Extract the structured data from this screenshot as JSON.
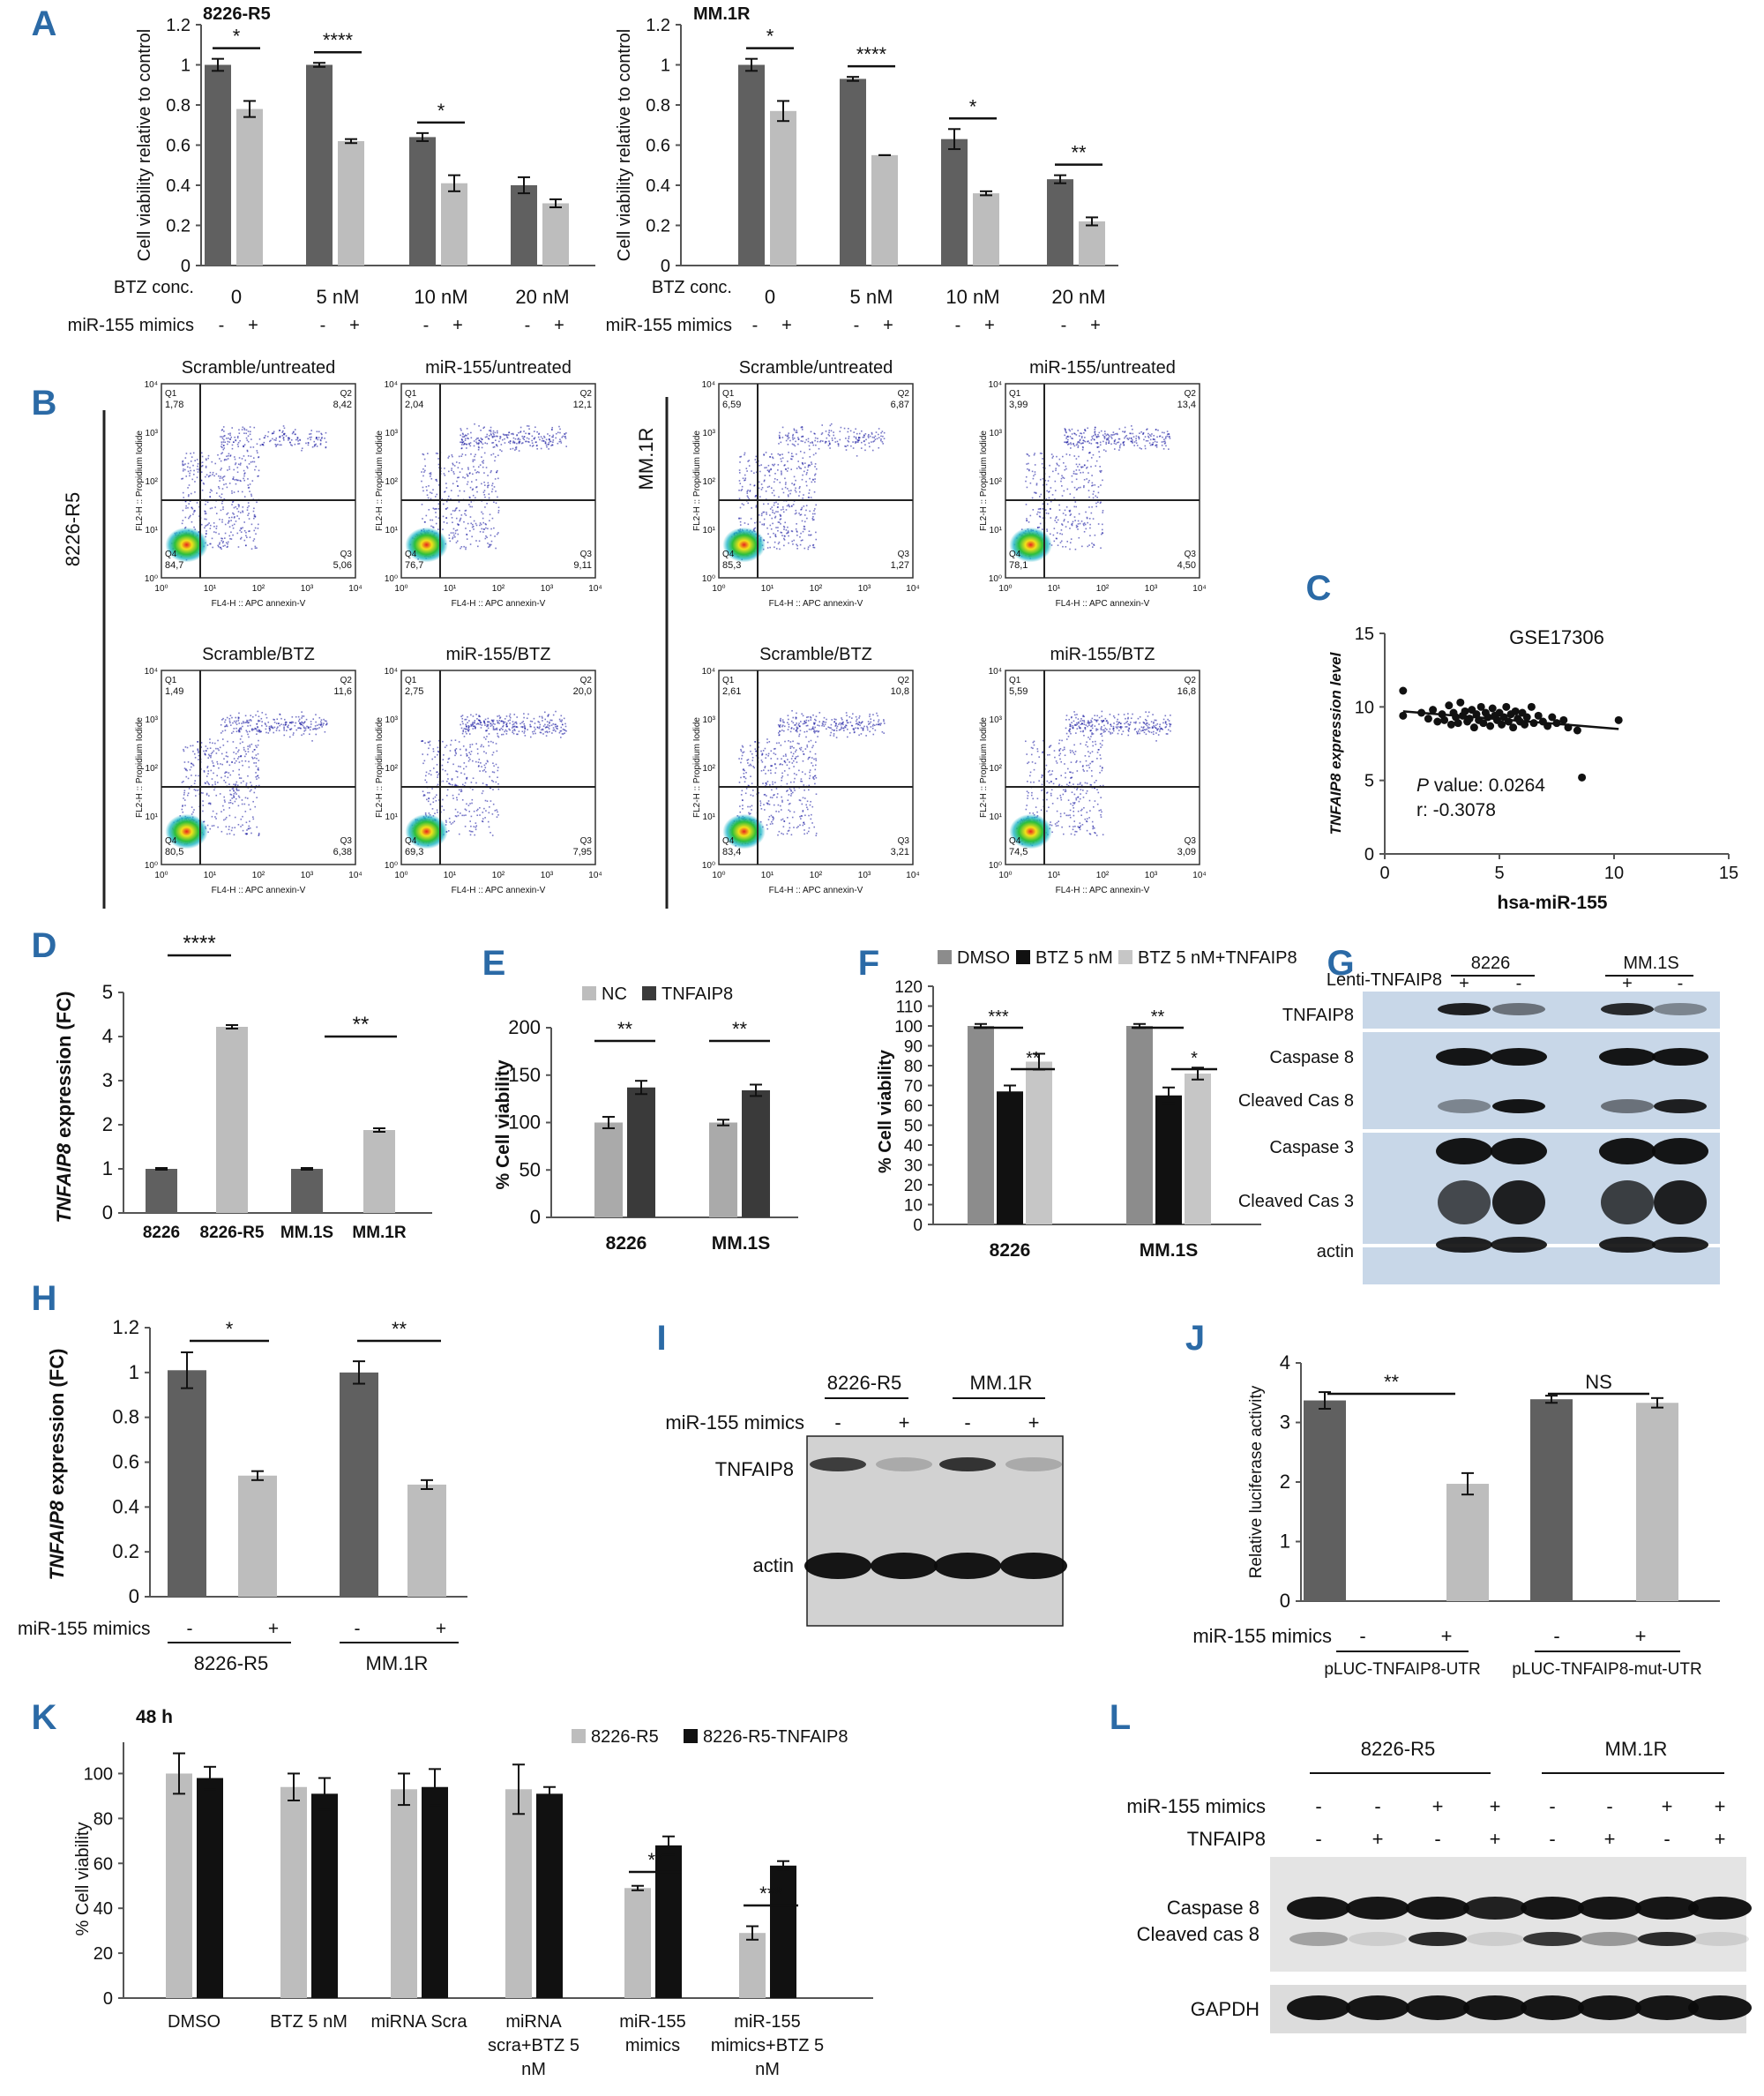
{
  "panels": [
    "A",
    "B",
    "C",
    "D",
    "E",
    "F",
    "G",
    "H",
    "I",
    "J",
    "K",
    "L"
  ],
  "colors": {
    "dark": "#606060",
    "light": "#bdbdbd",
    "black": "#111111",
    "mid": "#8c8c8c",
    "panel": "#2b6aa6",
    "dot": "#0a0a9a"
  },
  "A": {
    "ylabel": "Cell viability relative to control",
    "row1_label": "BTZ conc.",
    "row2_label": "miR-155 mimics",
    "groups": [
      "0",
      "5 nM",
      "10 nM",
      "20 nM"
    ],
    "signs": [
      "-",
      "+",
      "-",
      "+",
      "-",
      "+",
      "-",
      "+"
    ],
    "ticks": [
      "0",
      "0.2",
      "0.4",
      "0.6",
      "0.8",
      "1",
      "1.2"
    ],
    "charts": [
      {
        "title": "8226-R5",
        "values": [
          [
            1.0,
            0.78
          ],
          [
            1.0,
            0.62
          ],
          [
            0.64,
            0.41
          ],
          [
            0.4,
            0.31
          ]
        ],
        "errors": [
          [
            0.03,
            0.04
          ],
          [
            0.01,
            0.01
          ],
          [
            0.02,
            0.04
          ],
          [
            0.04,
            0.02
          ]
        ],
        "sig": [
          "*",
          "****",
          "*",
          ""
        ]
      },
      {
        "title": "MM.1R",
        "values": [
          [
            1.0,
            0.77
          ],
          [
            0.93,
            0.55
          ],
          [
            0.63,
            0.36
          ],
          [
            0.43,
            0.22
          ]
        ],
        "errors": [
          [
            0.03,
            0.05
          ],
          [
            0.01,
            0.0
          ],
          [
            0.05,
            0.01
          ],
          [
            0.02,
            0.02
          ]
        ],
        "sig": [
          "*",
          "****",
          "*",
          "**"
        ]
      }
    ]
  },
  "B": {
    "left_row_label": "8226-R5",
    "right_row_label": "MM.1R",
    "xaxis": "FL4-H :: APC annexin-V",
    "yaxis": "FL2-H :: Propidium Iodide",
    "ticks": [
      "10⁰",
      "10¹",
      "10²",
      "10³",
      "10⁴"
    ],
    "quadrant_names": [
      "Q1",
      "Q2",
      "Q3",
      "Q4"
    ],
    "plots": [
      {
        "title": "Scramble/untreated",
        "q1": "1,78",
        "q2": "8,42",
        "q3": "5,06",
        "q4": "84,7"
      },
      {
        "title": "miR-155/untreated",
        "q1": "2,04",
        "q2": "12,1",
        "q3": "9,11",
        "q4": "76,7"
      },
      {
        "title": "Scramble/BTZ",
        "q1": "1,49",
        "q2": "11,6",
        "q3": "6,38",
        "q4": "80,5"
      },
      {
        "title": "miR-155/BTZ",
        "q1": "2,75",
        "q2": "20,0",
        "q3": "7,95",
        "q4": "69,3"
      },
      {
        "title": "Scramble/untreated",
        "q1": "6,59",
        "q2": "6,87",
        "q3": "1,27",
        "q4": "85,3"
      },
      {
        "title": "miR-155/untreated",
        "q1": "3,99",
        "q2": "13,4",
        "q3": "4,50",
        "q4": "78,1"
      },
      {
        "title": "Scramble/BTZ",
        "q1": "2,61",
        "q2": "10,8",
        "q3": "3,21",
        "q4": "83,4"
      },
      {
        "title": "miR-155/BTZ",
        "q1": "5,59",
        "q2": "16,8",
        "q3": "3,09",
        "q4": "74,5"
      }
    ]
  },
  "C": {
    "title": "GSE17306",
    "ylabel": "TNFAIP8 expression level",
    "xlabel": "hsa-miR-155",
    "ticks": [
      "0",
      "5",
      "10",
      "15"
    ],
    "pvalue_label": "P",
    "pvalue_text": "value: 0.0264",
    "r_text": "r: -0.3078",
    "points": [
      [
        0.8,
        11.1
      ],
      [
        0.8,
        9.4
      ],
      [
        1.6,
        9.6
      ],
      [
        1.9,
        9.2
      ],
      [
        2.1,
        9.8
      ],
      [
        2.3,
        9.0
      ],
      [
        2.5,
        9.5
      ],
      [
        2.6,
        9.1
      ],
      [
        2.8,
        10.1
      ],
      [
        2.9,
        8.8
      ],
      [
        3.0,
        9.6
      ],
      [
        3.1,
        9.3
      ],
      [
        3.2,
        8.9
      ],
      [
        3.3,
        10.3
      ],
      [
        3.4,
        9.4
      ],
      [
        3.5,
        9.7
      ],
      [
        3.6,
        9.0
      ],
      [
        3.7,
        9.2
      ],
      [
        3.8,
        9.8
      ],
      [
        3.9,
        8.6
      ],
      [
        4.0,
        9.5
      ],
      [
        4.1,
        9.1
      ],
      [
        4.2,
        10.0
      ],
      [
        4.3,
        8.9
      ],
      [
        4.4,
        9.6
      ],
      [
        4.5,
        9.3
      ],
      [
        4.6,
        8.7
      ],
      [
        4.7,
        9.9
      ],
      [
        4.8,
        9.4
      ],
      [
        4.9,
        9.1
      ],
      [
        5.0,
        9.6
      ],
      [
        5.1,
        8.8
      ],
      [
        5.2,
        9.3
      ],
      [
        5.3,
        10.0
      ],
      [
        5.4,
        9.0
      ],
      [
        5.5,
        9.5
      ],
      [
        5.6,
        8.6
      ],
      [
        5.7,
        9.7
      ],
      [
        5.8,
        9.2
      ],
      [
        5.9,
        9.0
      ],
      [
        6.0,
        9.6
      ],
      [
        6.1,
        8.8
      ],
      [
        6.2,
        9.3
      ],
      [
        6.4,
        10.0
      ],
      [
        6.5,
        8.9
      ],
      [
        6.7,
        9.4
      ],
      [
        6.9,
        9.0
      ],
      [
        7.1,
        8.7
      ],
      [
        7.3,
        9.3
      ],
      [
        7.5,
        8.9
      ],
      [
        7.8,
        9.1
      ],
      [
        8.0,
        8.6
      ],
      [
        8.4,
        8.4
      ],
      [
        8.6,
        5.2
      ],
      [
        10.2,
        9.1
      ]
    ],
    "fit": [
      [
        0.8,
        9.7
      ],
      [
        10.2,
        8.5
      ]
    ],
    "xlim": [
      0,
      15
    ],
    "ylim": [
      0,
      15
    ]
  },
  "D": {
    "ylabel_italic": "TNFAIP8",
    "ylabel_rest": " expression (FC)",
    "categories": [
      "8226",
      "8226-R5",
      "MM.1S",
      "MM.1R"
    ],
    "values": [
      1.0,
      4.22,
      1.0,
      1.88
    ],
    "errors": [
      0.02,
      0.04,
      0.02,
      0.04
    ],
    "sig": [
      "****",
      "**"
    ],
    "ticks": [
      "0",
      "1",
      "2",
      "3",
      "4",
      "5"
    ]
  },
  "E": {
    "ylabel": "% Cell viability",
    "legend": [
      "NC",
      "TNFAIP8"
    ],
    "groups": [
      "8226",
      "MM.1S"
    ],
    "values": [
      [
        100,
        137
      ],
      [
        100,
        134
      ]
    ],
    "errors": [
      [
        6,
        7
      ],
      [
        3,
        6
      ]
    ],
    "sig": [
      "**",
      "**"
    ],
    "ticks": [
      "0",
      "50",
      "100",
      "150",
      "200"
    ]
  },
  "F": {
    "ylabel": "% Cell viability",
    "legend": [
      "DMSO",
      "BTZ 5 nM",
      "BTZ 5 nM+TNFAIP8"
    ],
    "groups": [
      "8226",
      "MM.1S"
    ],
    "values": [
      [
        100,
        67,
        82
      ],
      [
        100,
        65,
        76
      ]
    ],
    "errors": [
      [
        1,
        3,
        4
      ],
      [
        1,
        4,
        3
      ]
    ],
    "sig": [
      "***",
      "**",
      "**",
      "*"
    ],
    "ticks": [
      "0",
      "10",
      "20",
      "30",
      "40",
      "50",
      "60",
      "70",
      "80",
      "90",
      "100",
      "110",
      "120"
    ]
  },
  "G": {
    "row_label": "Lenti-TNFAIP8",
    "lines": [
      "8226",
      "MM.1S"
    ],
    "signs": [
      "+",
      "-",
      "+",
      "-"
    ],
    "bands": [
      "TNFAIP8",
      "Caspase 8",
      "Cleaved Cas 8",
      "Caspase 3",
      "Cleaved Cas 3",
      "actin"
    ]
  },
  "H": {
    "ylabel_italic": "TNFAIP8",
    "ylabel_rest": " expression (FC)",
    "row_label": "miR-155  mimics",
    "groups": [
      "8226-R5",
      "MM.1R"
    ],
    "signs": [
      "-",
      "+",
      "-",
      "+"
    ],
    "values": [
      [
        1.01,
        0.54
      ],
      [
        1.0,
        0.5
      ]
    ],
    "errors": [
      [
        0.08,
        0.02
      ],
      [
        0.05,
        0.02
      ]
    ],
    "sig": [
      "*",
      "**"
    ],
    "ticks": [
      "0",
      "0.2",
      "0.4",
      "0.6",
      "0.8",
      "1",
      "1.2"
    ]
  },
  "I": {
    "lines": [
      "8226-R5",
      "MM.1R"
    ],
    "row_label": "miR-155 mimics",
    "signs": [
      "-",
      "+",
      "-",
      "+"
    ],
    "bands": [
      "TNFAIP8",
      "actin"
    ]
  },
  "J": {
    "ylabel": "Relative luciferase activity",
    "row_label": "miR-155 mimics",
    "groups": [
      "pLUC-TNFAIP8-UTR",
      "pLUC-TNFAIP8-mut-UTR"
    ],
    "signs": [
      "-",
      "+",
      "-",
      "+"
    ],
    "values": [
      [
        3.37,
        1.97
      ],
      [
        3.39,
        3.33
      ]
    ],
    "errors": [
      [
        0.14,
        0.18
      ],
      [
        0.06,
        0.08
      ]
    ],
    "sig": [
      "**",
      "NS"
    ],
    "ticks": [
      "0",
      "1",
      "2",
      "3",
      "4"
    ]
  },
  "K": {
    "title": "48 h",
    "ylabel": "% Cell viability",
    "legend": [
      "8226-R5",
      "8226-R5-TNFAIP8"
    ],
    "categories": [
      [
        "DMSO"
      ],
      [
        "BTZ 5 nM"
      ],
      [
        "miRNA Scra"
      ],
      [
        "miRNA",
        "scra+BTZ 5",
        "nM"
      ],
      [
        "miR-155",
        "mimics"
      ],
      [
        "miR-155",
        "mimics+BTZ 5",
        "nM"
      ]
    ],
    "values": [
      [
        100,
        98
      ],
      [
        94,
        91
      ],
      [
        93,
        94
      ],
      [
        93,
        91
      ],
      [
        49,
        68
      ],
      [
        29,
        59
      ]
    ],
    "errors": [
      [
        9,
        5
      ],
      [
        6,
        7
      ],
      [
        7,
        8
      ],
      [
        11,
        3
      ],
      [
        1,
        4
      ],
      [
        3,
        2
      ]
    ],
    "sig": [
      "**",
      "***"
    ],
    "ticks": [
      "0",
      "20",
      "40",
      "60",
      "80",
      "100"
    ]
  },
  "L": {
    "lines": [
      "8226-R5",
      "MM.1R"
    ],
    "rows": [
      "miR-155 mimics",
      "TNFAIP8"
    ],
    "mimics_signs": [
      "-",
      "-",
      "+",
      "+",
      "-",
      "-",
      "+",
      "+"
    ],
    "tnfaip8_signs": [
      "-",
      "+",
      "-",
      "+",
      "-",
      "+",
      "-",
      "+"
    ],
    "bands": [
      "Caspase 8",
      "Cleaved cas 8",
      "GAPDH"
    ]
  }
}
